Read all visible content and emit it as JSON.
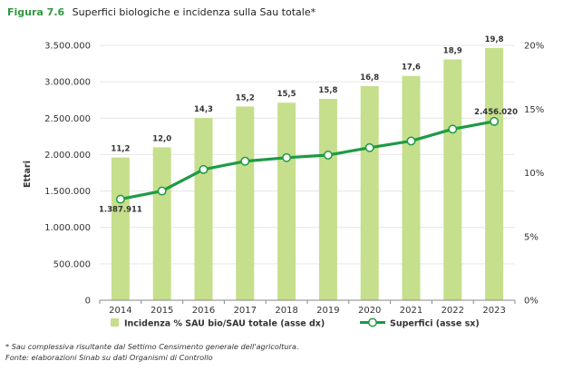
{
  "figure": {
    "number": "Figura 7.6",
    "title": "Superfici biologiche e incidenza sulla Sau totale*"
  },
  "colors": {
    "bar": "#c5df8c",
    "line": "#1f9a45",
    "marker_fill": "#ffffff",
    "title_accent": "#2f9a3e",
    "axis_text": "#333333",
    "grid": "#e6e6e6"
  },
  "chart_data": {
    "type": "bar+line",
    "categories": [
      "2014",
      "2015",
      "2016",
      "2017",
      "2018",
      "2019",
      "2020",
      "2021",
      "2022",
      "2023"
    ],
    "series": [
      {
        "name": "Incidenza % SAU bio/SAU totale (asse dx)",
        "kind": "bar",
        "axis": "right",
        "values": [
          11.2,
          12.0,
          14.3,
          15.2,
          15.5,
          15.8,
          16.8,
          17.6,
          18.9,
          19.8
        ],
        "labels": [
          "11,2",
          "12,0",
          "14,3",
          "15,2",
          "15,5",
          "15,8",
          "16,8",
          "17,6",
          "18,9",
          "19,8"
        ]
      },
      {
        "name": "Superfici (asse sx)",
        "kind": "line",
        "axis": "left",
        "values": [
          1387911,
          1500000,
          1795650,
          1908653,
          1958045,
          1993236,
          2095380,
          2186570,
          2349880,
          2456020
        ],
        "point_labels": [
          {
            "index": 0,
            "text": "1.387.911"
          },
          {
            "index": 9,
            "text": "2.456.020"
          }
        ]
      }
    ],
    "ylabel_left": "Ettari",
    "ylim_left": [
      0,
      3500000
    ],
    "yticks_left": [
      "0",
      "500.000",
      "1.000.000",
      "1.500.000",
      "2.000.000",
      "2.500.000",
      "3.000.000",
      "3.500.000"
    ],
    "ylim_right": [
      0,
      20
    ],
    "yticks_right": [
      "0%",
      "5%",
      "10%",
      "15%",
      "20%"
    ],
    "grid": true,
    "legend_position": "bottom"
  },
  "footer": {
    "note": "* Sau complessiva risultante dal Settimo Censimento generale dell'agricoltura.",
    "source": "Fonte: elaborazioni Sinab su dati Organismi di Controllo"
  }
}
